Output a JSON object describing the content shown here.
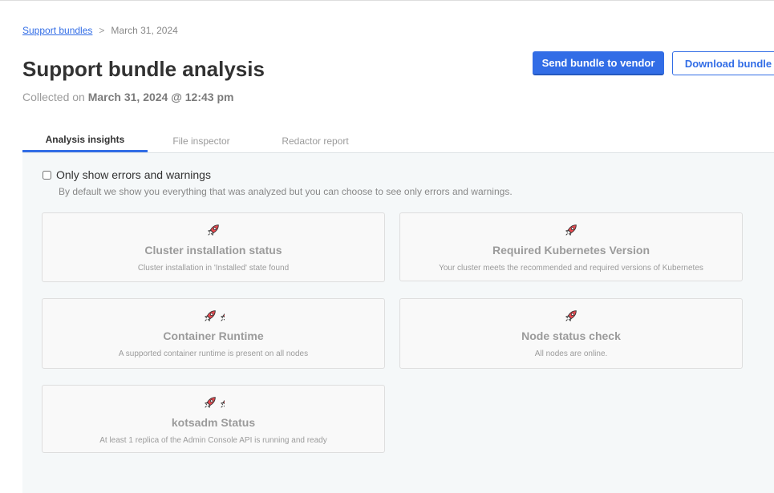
{
  "breadcrumb": {
    "link": "Support bundles",
    "separator": ">",
    "current": "March 31, 2024"
  },
  "header": {
    "title": "Support bundle analysis",
    "collected_prefix": "Collected on",
    "collected_value": "March 31, 2024 @ 12:43 pm"
  },
  "actions": {
    "send": "Send bundle to vendor",
    "download": "Download bundle"
  },
  "tabs": [
    {
      "label": "Analysis insights",
      "active": true
    },
    {
      "label": "File inspector"
    },
    {
      "label": "Redactor report"
    }
  ],
  "filter": {
    "label": "Only show errors and warnings",
    "checked": false,
    "help": "By default we show you everything that was analyzed but you can choose to see only errors and warnings."
  },
  "colors": {
    "accent": "#326de6",
    "rocket": "#e8484f"
  },
  "insights": [
    {
      "title": "Cluster installation status",
      "desc": "Cluster installation in 'Installed' state found",
      "icon": "rocket-icon",
      "icons": 1
    },
    {
      "title": "Required Kubernetes Version",
      "desc": "Your cluster meets the recommended and required versions of Kubernetes",
      "icon": "rocket-icon",
      "icons": 1
    },
    {
      "title": "Container Runtime",
      "desc": "A supported container runtime is present on all nodes",
      "icon": "rocket-icon",
      "icons": 2
    },
    {
      "title": "Node status check",
      "desc": "All nodes are online.",
      "icon": "rocket-icon",
      "icons": 1
    },
    {
      "title": "kotsadm Status",
      "desc": "At least 1 replica of the Admin Console API is running and ready",
      "icon": "rocket-icon",
      "icons": 2
    }
  ]
}
